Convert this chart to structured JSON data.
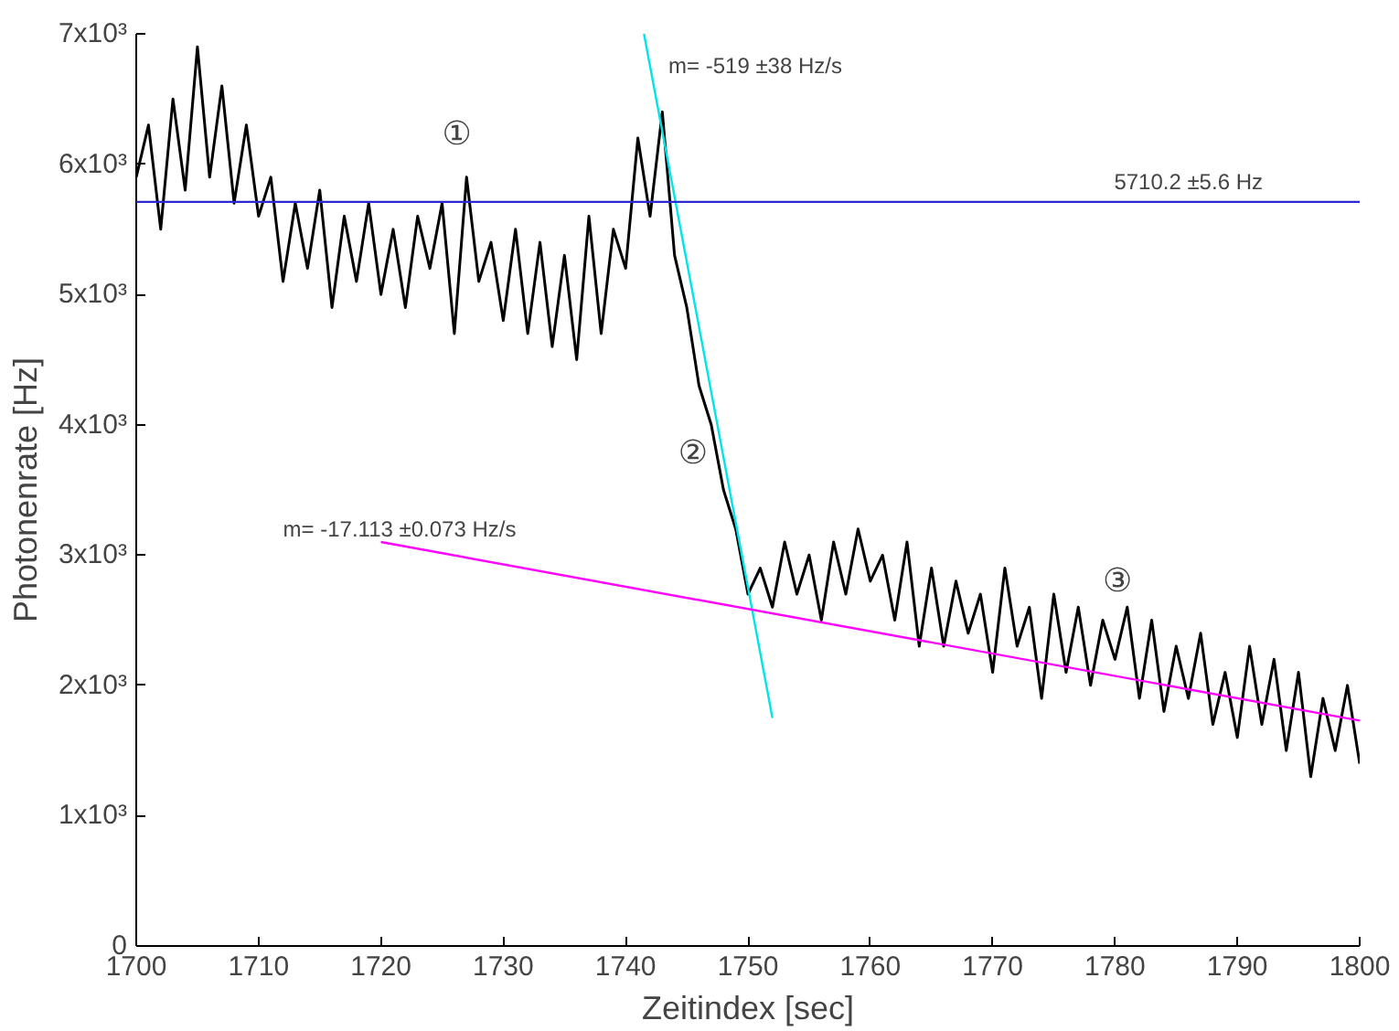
{
  "chart_data": {
    "type": "line",
    "xlabel": "Zeitindex [sec]",
    "ylabel": "Photonenrate [Hz]",
    "xlim": [
      1700,
      1800
    ],
    "ylim": [
      0,
      7000
    ],
    "xticks": [
      1700,
      1710,
      1720,
      1730,
      1740,
      1750,
      1760,
      1770,
      1780,
      1790,
      1800
    ],
    "yticks": [
      0,
      {
        "value": 1000,
        "label": "1x10³"
      },
      {
        "value": 2000,
        "label": "2x10³"
      },
      {
        "value": 3000,
        "label": "3x10³"
      },
      {
        "value": 4000,
        "label": "4x10³"
      },
      {
        "value": 5000,
        "label": "5x10³"
      },
      {
        "value": 6000,
        "label": "6x10³"
      },
      {
        "value": 7000,
        "label": "7x10³"
      }
    ],
    "grid": false,
    "marker": "none",
    "line_style": "solid",
    "x": [
      1700,
      1701,
      1702,
      1703,
      1704,
      1705,
      1706,
      1707,
      1708,
      1709,
      1710,
      1711,
      1712,
      1713,
      1714,
      1715,
      1716,
      1717,
      1718,
      1719,
      1720,
      1721,
      1722,
      1723,
      1724,
      1725,
      1726,
      1727,
      1728,
      1729,
      1730,
      1731,
      1732,
      1733,
      1734,
      1735,
      1736,
      1737,
      1738,
      1739,
      1740,
      1741,
      1742,
      1743,
      1744,
      1745,
      1746,
      1747,
      1748,
      1749,
      1750,
      1751,
      1752,
      1753,
      1754,
      1755,
      1756,
      1757,
      1758,
      1759,
      1760,
      1761,
      1762,
      1763,
      1764,
      1765,
      1766,
      1767,
      1768,
      1769,
      1770,
      1771,
      1772,
      1773,
      1774,
      1775,
      1776,
      1777,
      1778,
      1779,
      1780,
      1781,
      1782,
      1783,
      1784,
      1785,
      1786,
      1787,
      1788,
      1789,
      1790,
      1791,
      1792,
      1793,
      1794,
      1795,
      1796,
      1797,
      1798,
      1799,
      1800
    ],
    "series": [
      {
        "color": "#000000",
        "values": [
          5900,
          6300,
          5500,
          6500,
          5800,
          6900,
          5900,
          6600,
          5700,
          6300,
          5600,
          5900,
          5100,
          5700,
          5200,
          5800,
          4900,
          5600,
          5100,
          5700,
          5000,
          5500,
          4900,
          5600,
          5200,
          5700,
          4700,
          5900,
          5100,
          5400,
          4800,
          5500,
          4700,
          5400,
          4600,
          5300,
          4500,
          5600,
          4700,
          5500,
          5200,
          6200,
          5600,
          6400,
          5300,
          4900,
          4300,
          4000,
          3500,
          3200,
          2700,
          2900,
          2600,
          3100,
          2700,
          3000,
          2500,
          3100,
          2700,
          3200,
          2800,
          3000,
          2500,
          3100,
          2300,
          2900,
          2300,
          2800,
          2400,
          2700,
          2100,
          2900,
          2300,
          2600,
          1900,
          2700,
          2100,
          2600,
          2000,
          2500,
          2200,
          2600,
          1900,
          2500,
          1800,
          2300,
          1900,
          2400,
          1700,
          2100,
          1600,
          2300,
          1700,
          2200,
          1500,
          2100,
          1300,
          1900,
          1500,
          2000,
          1400
        ]
      },
      {
        "type": "line",
        "color": "#00e5e5",
        "x": [
          1741.5,
          1752
        ],
        "values": [
          7000,
          1750
        ]
      },
      {
        "type": "line",
        "color": "#ff00ff",
        "x": [
          1720,
          1800
        ],
        "values": [
          3100,
          1730
        ]
      }
    ],
    "ref_lines": [
      {
        "axis": "y",
        "value": 5710.2,
        "label": "5710.2 ±5.6 Hz",
        "color": "#2a2ad0"
      }
    ],
    "annotations": [
      "m= -519 ±38 Hz/s",
      "m= -17.113 ±0.073 Hz/s",
      "①",
      "②",
      "③"
    ]
  }
}
